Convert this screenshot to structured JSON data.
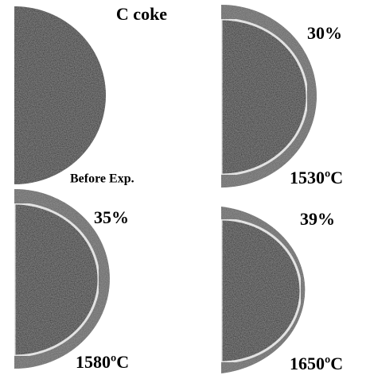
{
  "panels": [
    {
      "labels": [
        "C coke",
        "Before Exp."
      ]
    },
    {
      "labels": [
        "30%",
        "1530ºC"
      ]
    },
    {
      "labels": [
        "35%",
        "1580ºC"
      ]
    },
    {
      "labels": [
        "39%",
        "1650ºC"
      ]
    }
  ]
}
